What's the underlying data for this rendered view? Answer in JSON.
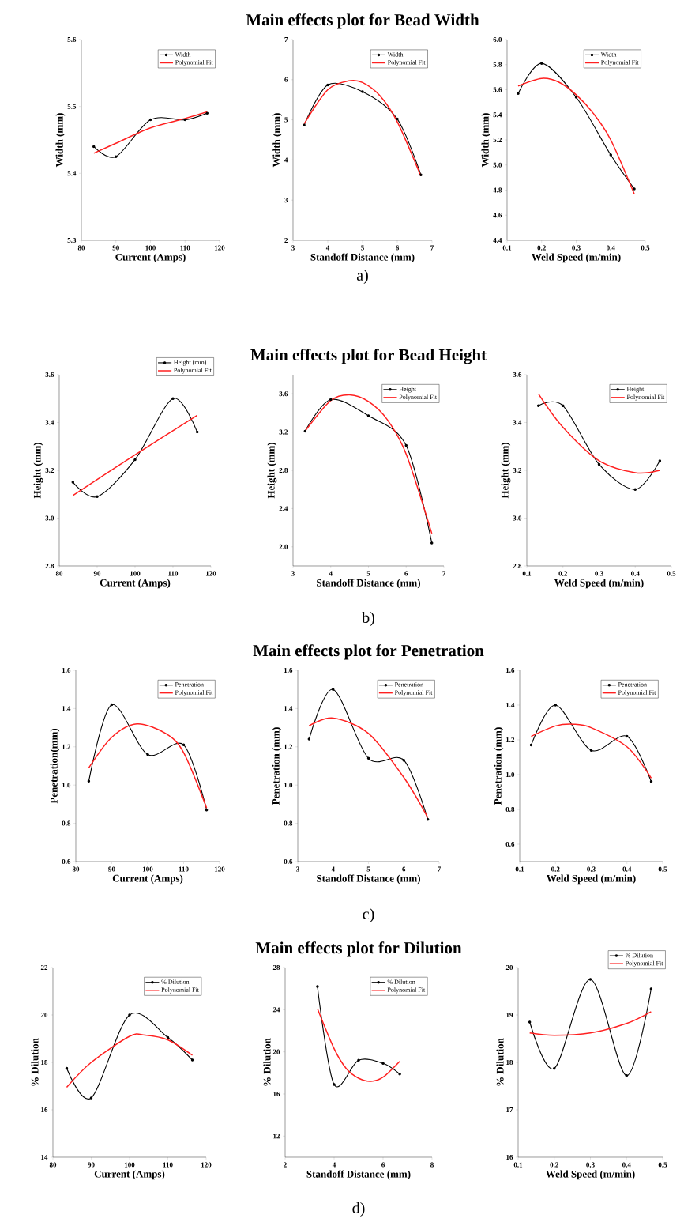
{
  "chart_data": [
    {
      "type": "line",
      "xlabel": "Current (Amps)",
      "ylabel": "Width (mm)",
      "xlim": [
        80,
        120
      ],
      "xticks": [
        80,
        90,
        100,
        110,
        120
      ],
      "ylim": [
        5.3,
        5.6
      ],
      "yticks": [
        5.3,
        5.4,
        5.5,
        5.6
      ],
      "legend": "top right",
      "series": [
        {
          "name": "Width",
          "color": "#000000",
          "type": "line",
          "marker": "circle",
          "x": [
            83.6,
            90,
            100,
            110,
            116.4
          ],
          "values": [
            5.44,
            5.425,
            5.48,
            5.48,
            5.49
          ]
        },
        {
          "name": "Polynomial Fit",
          "color": "#ff2020",
          "type": "line",
          "marker": "none",
          "x": [
            83.6,
            90,
            100,
            110,
            116.4
          ],
          "values": [
            5.43,
            5.445,
            5.468,
            5.482,
            5.492
          ]
        }
      ]
    },
    {
      "type": "line",
      "title": "Main effects plot for Bead Width",
      "annotations": [
        "a)"
      ],
      "xlabel": "Standoff Distance (mm)",
      "ylabel": "Width (mm)",
      "xlim": [
        3,
        7
      ],
      "xticks": [
        3,
        4,
        5,
        6,
        7
      ],
      "ylim": [
        2,
        7
      ],
      "yticks": [
        2,
        3,
        4,
        5,
        6,
        7
      ],
      "legend": "top right",
      "series": [
        {
          "name": "Width",
          "color": "#000000",
          "type": "line",
          "marker": "circle",
          "x": [
            3.32,
            4,
            5,
            6,
            6.68
          ],
          "values": [
            4.87,
            5.87,
            5.7,
            5.02,
            3.63
          ]
        },
        {
          "name": "Polynomial Fit",
          "color": "#ff2020",
          "type": "line",
          "marker": "none",
          "x": [
            3.32,
            4,
            4.6,
            5,
            5.5,
            6,
            6.68
          ],
          "values": [
            4.9,
            5.75,
            5.97,
            5.93,
            5.6,
            4.95,
            3.6
          ]
        }
      ]
    },
    {
      "type": "line",
      "xlabel": "Weld Speed (m/min)",
      "ylabel": "Width (mm)",
      "xlim": [
        0.1,
        0.5
      ],
      "xticks": [
        0.1,
        0.2,
        0.3,
        0.4,
        0.5
      ],
      "ylim": [
        4.4,
        6.0
      ],
      "yticks": [
        4.4,
        4.6,
        4.8,
        {
          "value": 5,
          "label": "5.0"
        },
        5.2,
        5.4,
        5.6,
        5.8,
        {
          "value": 6,
          "label": "6.0"
        }
      ],
      "legend": "top right",
      "series": [
        {
          "name": "Width",
          "color": "#000000",
          "type": "line",
          "marker": "circle",
          "x": [
            0.132,
            0.2,
            0.3,
            0.4,
            0.468
          ],
          "values": [
            5.57,
            5.81,
            5.54,
            5.08,
            4.81
          ]
        },
        {
          "name": "Polynomial Fit",
          "color": "#ff2020",
          "type": "line",
          "marker": "none",
          "x": [
            0.132,
            0.2,
            0.25,
            0.3,
            0.35,
            0.4,
            0.468
          ],
          "values": [
            5.63,
            5.69,
            5.66,
            5.56,
            5.41,
            5.2,
            4.77
          ]
        }
      ]
    },
    {
      "type": "line",
      "xlabel": "Current (Amps)",
      "ylabel": "Height (mm)",
      "xlim": [
        80,
        120
      ],
      "xticks": [
        80,
        90,
        100,
        110,
        120
      ],
      "ylim": [
        2.8,
        3.6
      ],
      "yticks": [
        2.8,
        {
          "value": 3,
          "label": "3.0"
        },
        3.2,
        3.4,
        3.6
      ],
      "legend": "top right",
      "series": [
        {
          "name": "Height (mm)",
          "color": "#000000",
          "type": "line",
          "marker": "circle",
          "x": [
            83.6,
            90,
            100,
            110,
            116.4
          ],
          "values": [
            3.15,
            3.09,
            3.245,
            3.5,
            3.36
          ]
        },
        {
          "name": "Polynomial Fit",
          "color": "#ff2020",
          "type": "line",
          "marker": "none",
          "x": [
            83.6,
            100,
            116.4
          ],
          "values": [
            3.095,
            3.265,
            3.43
          ]
        }
      ]
    },
    {
      "type": "line",
      "title": "Main effects plot for Bead Height",
      "annotations": [
        "b)"
      ],
      "xlabel": "Standoff Distance (mm)",
      "ylabel": "Height (mm)",
      "xlim": [
        3,
        7
      ],
      "xticks": [
        3,
        4,
        5,
        6,
        7
      ],
      "ylim": [
        1.8,
        3.8
      ],
      "yticks": [
        {
          "value": 2,
          "label": "2.0"
        },
        2.4,
        2.8,
        3.2,
        3.6
      ],
      "legend": "top right",
      "series": [
        {
          "name": "Height",
          "color": "#000000",
          "type": "line",
          "marker": "circle",
          "x": [
            3.32,
            4,
            5,
            6,
            6.68
          ],
          "values": [
            3.21,
            3.54,
            3.37,
            3.06,
            2.04
          ]
        },
        {
          "name": "Polynomial Fit",
          "color": "#ff2020",
          "type": "line",
          "marker": "none",
          "x": [
            3.32,
            4,
            4.5,
            5,
            5.5,
            6,
            6.68
          ],
          "values": [
            3.21,
            3.53,
            3.59,
            3.52,
            3.33,
            2.97,
            2.14
          ]
        }
      ]
    },
    {
      "type": "line",
      "xlabel": "Weld Speed (m/min)",
      "ylabel": "Height (mm)",
      "xlim": [
        0.1,
        0.5
      ],
      "xticks": [
        0.1,
        0.2,
        0.3,
        0.4,
        0.5
      ],
      "ylim": [
        2.8,
        3.6
      ],
      "yticks": [
        2.8,
        {
          "value": 3,
          "label": "3.0"
        },
        3.2,
        3.4,
        3.6
      ],
      "legend": "top right",
      "series": [
        {
          "name": "Height",
          "color": "#000000",
          "type": "line",
          "marker": "circle",
          "x": [
            0.132,
            0.2,
            0.3,
            0.4,
            0.468
          ],
          "values": [
            3.47,
            3.47,
            3.225,
            3.12,
            3.24
          ]
        },
        {
          "name": "Polynomial Fit",
          "color": "#ff2020",
          "type": "line",
          "marker": "none",
          "x": [
            0.132,
            0.2,
            0.3,
            0.4,
            0.468
          ],
          "values": [
            3.52,
            3.38,
            3.24,
            3.19,
            3.2
          ]
        }
      ]
    },
    {
      "type": "line",
      "xlabel": "Current (Amps)",
      "ylabel": "Penetration(mm)",
      "xlim": [
        80,
        120
      ],
      "xticks": [
        80,
        90,
        100,
        110,
        120
      ],
      "ylim": [
        0.6,
        1.6
      ],
      "yticks": [
        0.6,
        0.8,
        {
          "value": 1,
          "label": "1.0"
        },
        1.2,
        1.4,
        1.6
      ],
      "legend": "top right",
      "series": [
        {
          "name": "Penetration",
          "color": "#000000",
          "type": "line",
          "marker": "circle",
          "x": [
            83.6,
            90,
            100,
            110,
            116.4
          ],
          "values": [
            1.02,
            1.42,
            1.16,
            1.21,
            0.87
          ]
        },
        {
          "name": "Polynomial Fit",
          "color": "#ff2020",
          "type": "line",
          "marker": "none",
          "x": [
            83.6,
            90,
            97,
            105,
            110,
            116.4
          ],
          "values": [
            1.09,
            1.25,
            1.32,
            1.27,
            1.17,
            0.88
          ]
        }
      ]
    },
    {
      "type": "line",
      "title": "Main effects plot for Penetration",
      "annotations": [
        "c)"
      ],
      "xlabel": "Standoff Distance (mm)",
      "ylabel": "Penetration (mm)",
      "xlim": [
        3,
        7
      ],
      "xticks": [
        3,
        4,
        5,
        6,
        7
      ],
      "ylim": [
        0.6,
        1.6
      ],
      "yticks": [
        0.6,
        0.8,
        {
          "value": 1,
          "label": "1.0"
        },
        1.2,
        1.4,
        1.6
      ],
      "legend": "top right",
      "series": [
        {
          "name": "Penetration",
          "color": "#000000",
          "type": "line",
          "marker": "circle",
          "x": [
            3.32,
            4,
            5,
            6,
            6.68
          ],
          "values": [
            1.24,
            1.5,
            1.14,
            1.13,
            0.82
          ]
        },
        {
          "name": "Polynomial Fit",
          "color": "#ff2020",
          "type": "line",
          "marker": "none",
          "x": [
            3.32,
            4,
            5,
            6,
            6.68
          ],
          "values": [
            1.31,
            1.35,
            1.27,
            1.04,
            0.83
          ]
        }
      ]
    },
    {
      "type": "line",
      "xlabel": "Weld Speed (m/min)",
      "ylabel": "Penetration (mm)",
      "xlim": [
        0.1,
        0.5
      ],
      "xticks": [
        0.1,
        0.2,
        0.3,
        0.4,
        0.5
      ],
      "ylim": [
        0.5,
        1.6
      ],
      "yticks": [
        0.6,
        0.8,
        {
          "value": 1,
          "label": "1.0"
        },
        1.2,
        1.4,
        1.6
      ],
      "legend": "top right",
      "series": [
        {
          "name": "Penetration",
          "color": "#000000",
          "type": "line",
          "marker": "circle",
          "x": [
            0.132,
            0.2,
            0.3,
            0.4,
            0.468
          ],
          "values": [
            1.17,
            1.4,
            1.14,
            1.22,
            0.96
          ]
        },
        {
          "name": "Polynomial Fit",
          "color": "#ff2020",
          "type": "line",
          "marker": "none",
          "x": [
            0.132,
            0.2,
            0.25,
            0.3,
            0.4,
            0.468
          ],
          "values": [
            1.22,
            1.28,
            1.29,
            1.27,
            1.16,
            0.98
          ]
        }
      ]
    },
    {
      "type": "line",
      "xlabel": "Current (Amps)",
      "ylabel": "% Dilution",
      "xlim": [
        80,
        120
      ],
      "xticks": [
        80,
        90,
        100,
        110,
        120
      ],
      "ylim": [
        14,
        22
      ],
      "yticks": [
        14,
        16,
        18,
        20,
        22
      ],
      "legend": "top right",
      "series": [
        {
          "name": "% Dilution",
          "color": "#000000",
          "type": "line",
          "marker": "circle",
          "x": [
            83.6,
            90,
            100,
            110,
            116.4
          ],
          "values": [
            17.75,
            16.5,
            20.0,
            19.05,
            18.1
          ]
        },
        {
          "name": "Polynomial Fit",
          "color": "#ff2020",
          "type": "line",
          "marker": "none",
          "x": [
            83.6,
            90,
            100,
            104,
            110,
            116.4
          ],
          "values": [
            16.95,
            18.0,
            19.1,
            19.15,
            18.95,
            18.3
          ]
        }
      ]
    },
    {
      "type": "line",
      "title": "Main effects plot for Dilution",
      "annotations": [
        "d)"
      ],
      "xlabel": "Standoff Distance (mm)",
      "ylabel": "% Dilution",
      "xlim": [
        2,
        8
      ],
      "xticks": [
        2,
        4,
        6,
        8
      ],
      "ylim": [
        10,
        28
      ],
      "yticks": [
        12,
        16,
        20,
        24,
        28
      ],
      "legend": "top right",
      "series": [
        {
          "name": "% Dilution",
          "color": "#000000",
          "type": "line",
          "marker": "circle",
          "x": [
            3.32,
            4,
            5,
            6,
            6.68
          ],
          "values": [
            26.2,
            16.9,
            19.2,
            18.9,
            17.9
          ]
        },
        {
          "name": "Polynomial Fit",
          "color": "#ff2020",
          "type": "line",
          "marker": "none",
          "x": [
            3.32,
            4,
            4.5,
            5,
            5.5,
            6,
            6.68
          ],
          "values": [
            24.1,
            20.3,
            18.4,
            17.5,
            17.2,
            17.6,
            19.1
          ]
        }
      ]
    },
    {
      "type": "line",
      "xlabel": "Weld Speed (m/min)",
      "ylabel": "% Dilution",
      "xlim": [
        0.1,
        0.5
      ],
      "xticks": [
        0.1,
        0.2,
        0.3,
        0.4,
        0.5
      ],
      "ylim": [
        16,
        20
      ],
      "yticks": [
        16,
        17,
        18,
        19,
        20
      ],
      "legend": "top right",
      "series": [
        {
          "name": "% Dilution",
          "color": "#000000",
          "type": "line",
          "marker": "circle",
          "x": [
            0.132,
            0.2,
            0.3,
            0.4,
            0.468
          ],
          "values": [
            18.85,
            17.87,
            19.75,
            17.72,
            19.55
          ]
        },
        {
          "name": "Polynomial Fit",
          "color": "#ff2020",
          "type": "line",
          "marker": "none",
          "x": [
            0.132,
            0.2,
            0.3,
            0.4,
            0.468
          ],
          "values": [
            18.62,
            18.57,
            18.62,
            18.82,
            19.07
          ]
        }
      ]
    }
  ]
}
